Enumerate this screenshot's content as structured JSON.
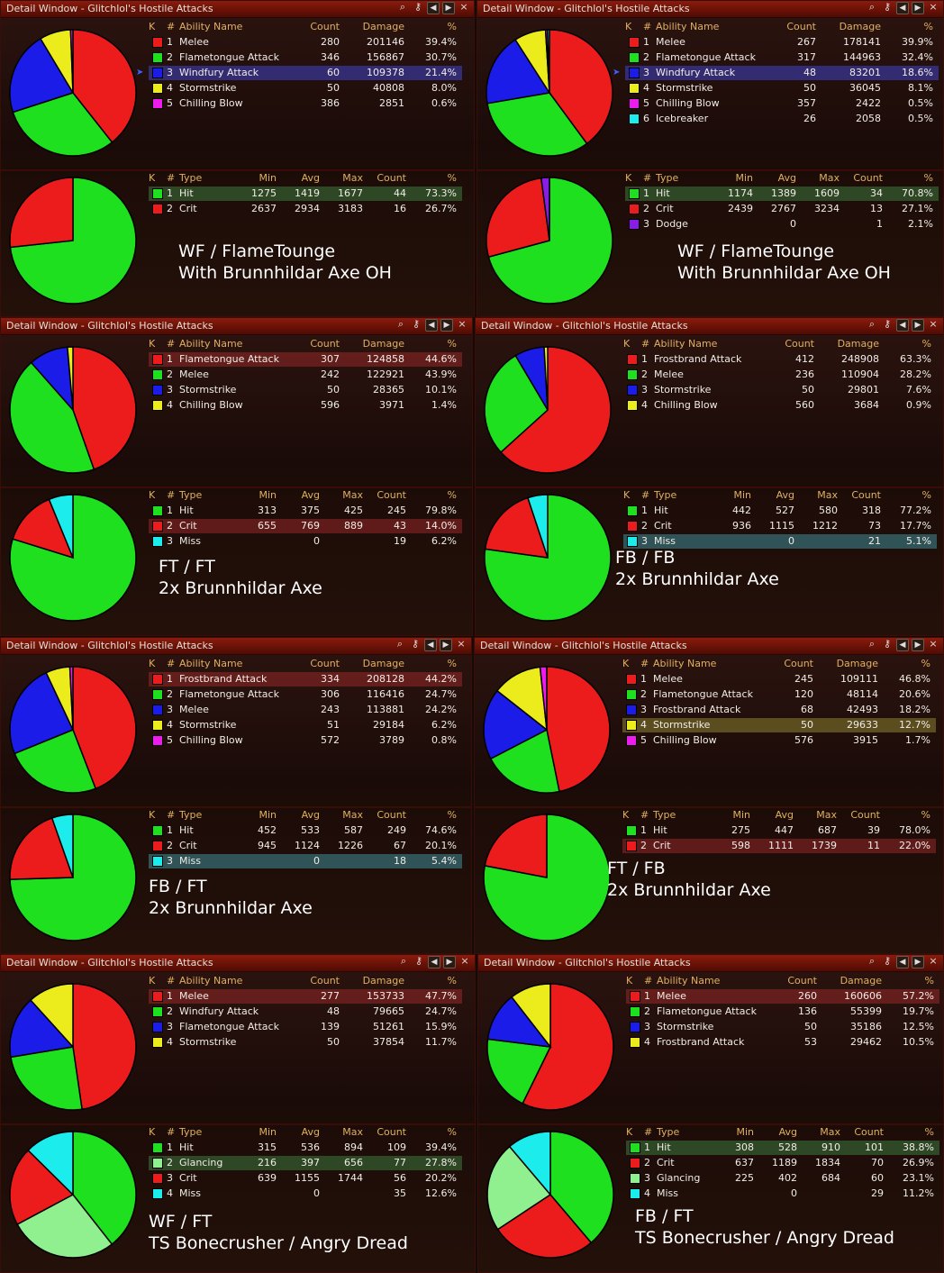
{
  "colors": {
    "red": "#ec1c1c",
    "green": "#1fe01f",
    "blue": "#1c1ce8",
    "yellow": "#ecec1c",
    "magenta": "#ec1cec",
    "cyan": "#1cecec",
    "purple": "#8a1ce8",
    "lightgreen": "#90f090"
  },
  "window_title": "Detail Window - Glitchlol's Hostile Attacks",
  "ability_headers": {
    "k": "K",
    "num": "#",
    "name": "Ability Name",
    "count": "Count",
    "damage": "Damage",
    "pct": "%"
  },
  "type_headers": {
    "k": "K",
    "num": "#",
    "type": "Type",
    "min": "Min",
    "avg": "Avg",
    "max": "Max",
    "count": "Count",
    "pct": "%"
  },
  "panels": [
    {
      "abilities": [
        {
          "num": "1",
          "name": "Melee",
          "count": "280",
          "damage": "201146",
          "pct": "39.4%",
          "color": "red",
          "value": 39.4
        },
        {
          "num": "2",
          "name": "Flametongue Attack",
          "count": "346",
          "damage": "156867",
          "pct": "30.7%",
          "color": "green",
          "value": 30.7
        },
        {
          "num": "3",
          "name": "Windfury Attack",
          "count": "60",
          "damage": "109378",
          "pct": "21.4%",
          "color": "blue",
          "value": 21.4,
          "highlight": "blue",
          "arrow": true
        },
        {
          "num": "4",
          "name": "Stormstrike",
          "count": "50",
          "damage": "40808",
          "pct": "8.0%",
          "color": "yellow",
          "value": 8.0
        },
        {
          "num": "5",
          "name": "Chilling Blow",
          "count": "386",
          "damage": "2851",
          "pct": "0.6%",
          "color": "magenta",
          "value": 0.6
        }
      ],
      "types": [
        {
          "num": "1",
          "type": "Hit",
          "min": "1275",
          "avg": "1419",
          "max": "1677",
          "count": "44",
          "pct": "73.3%",
          "color": "green",
          "value": 73.3,
          "highlight": "green"
        },
        {
          "num": "2",
          "type": "Crit",
          "min": "2637",
          "avg": "2934",
          "max": "3183",
          "count": "16",
          "pct": "26.7%",
          "color": "red",
          "value": 26.7
        }
      ],
      "caption": [
        "WF / FlameTounge",
        "With Brunnhildar Axe OH"
      ]
    },
    {
      "abilities": [
        {
          "num": "1",
          "name": "Melee",
          "count": "267",
          "damage": "178141",
          "pct": "39.9%",
          "color": "red",
          "value": 39.9
        },
        {
          "num": "2",
          "name": "Flametongue Attack",
          "count": "317",
          "damage": "144963",
          "pct": "32.4%",
          "color": "green",
          "value": 32.4
        },
        {
          "num": "3",
          "name": "Windfury Attack",
          "count": "48",
          "damage": "83201",
          "pct": "18.6%",
          "color": "blue",
          "value": 18.6,
          "highlight": "blue",
          "arrow": true
        },
        {
          "num": "4",
          "name": "Stormstrike",
          "count": "50",
          "damage": "36045",
          "pct": "8.1%",
          "color": "yellow",
          "value": 8.1
        },
        {
          "num": "5",
          "name": "Chilling Blow",
          "count": "357",
          "damage": "2422",
          "pct": "0.5%",
          "color": "magenta",
          "value": 0.5
        },
        {
          "num": "6",
          "name": "Icebreaker",
          "count": "26",
          "damage": "2058",
          "pct": "0.5%",
          "color": "cyan",
          "value": 0.5
        }
      ],
      "types": [
        {
          "num": "1",
          "type": "Hit",
          "min": "1174",
          "avg": "1389",
          "max": "1609",
          "count": "34",
          "pct": "70.8%",
          "color": "green",
          "value": 70.8,
          "highlight": "green"
        },
        {
          "num": "2",
          "type": "Crit",
          "min": "2439",
          "avg": "2767",
          "max": "3234",
          "count": "13",
          "pct": "27.1%",
          "color": "red",
          "value": 27.1
        },
        {
          "num": "3",
          "type": "Dodge",
          "min": "",
          "avg": "0",
          "max": "",
          "count": "1",
          "pct": "2.1%",
          "color": "purple",
          "value": 2.1
        }
      ],
      "caption": [
        "WF / FlameTounge",
        "With Brunnhildar Axe OH"
      ]
    },
    {
      "abilities": [
        {
          "num": "1",
          "name": "Flametongue Attack",
          "count": "307",
          "damage": "124858",
          "pct": "44.6%",
          "color": "red",
          "value": 44.6,
          "highlight": "red"
        },
        {
          "num": "2",
          "name": "Melee",
          "count": "242",
          "damage": "122921",
          "pct": "43.9%",
          "color": "green",
          "value": 43.9
        },
        {
          "num": "3",
          "name": "Stormstrike",
          "count": "50",
          "damage": "28365",
          "pct": "10.1%",
          "color": "blue",
          "value": 10.1
        },
        {
          "num": "4",
          "name": "Chilling Blow",
          "count": "596",
          "damage": "3971",
          "pct": "1.4%",
          "color": "yellow",
          "value": 1.4
        }
      ],
      "types": [
        {
          "num": "1",
          "type": "Hit",
          "min": "313",
          "avg": "375",
          "max": "425",
          "count": "245",
          "pct": "79.8%",
          "color": "green",
          "value": 79.8
        },
        {
          "num": "2",
          "type": "Crit",
          "min": "655",
          "avg": "769",
          "max": "889",
          "count": "43",
          "pct": "14.0%",
          "color": "red",
          "value": 14.0,
          "highlight": "red"
        },
        {
          "num": "3",
          "type": "Miss",
          "min": "",
          "avg": "0",
          "max": "",
          "count": "19",
          "pct": "6.2%",
          "color": "cyan",
          "value": 6.2
        }
      ],
      "caption": [
        "FT / FT",
        "2x Brunnhildar Axe"
      ]
    },
    {
      "abilities": [
        {
          "num": "1",
          "name": "Frostbrand Attack",
          "count": "412",
          "damage": "248908",
          "pct": "63.3%",
          "color": "red",
          "value": 63.3
        },
        {
          "num": "2",
          "name": "Melee",
          "count": "236",
          "damage": "110904",
          "pct": "28.2%",
          "color": "green",
          "value": 28.2
        },
        {
          "num": "3",
          "name": "Stormstrike",
          "count": "50",
          "damage": "29801",
          "pct": "7.6%",
          "color": "blue",
          "value": 7.6
        },
        {
          "num": "4",
          "name": "Chilling Blow",
          "count": "560",
          "damage": "3684",
          "pct": "0.9%",
          "color": "yellow",
          "value": 0.9
        }
      ],
      "types": [
        {
          "num": "1",
          "type": "Hit",
          "min": "442",
          "avg": "527",
          "max": "580",
          "count": "318",
          "pct": "77.2%",
          "color": "green",
          "value": 77.2
        },
        {
          "num": "2",
          "type": "Crit",
          "min": "936",
          "avg": "1115",
          "max": "1212",
          "count": "73",
          "pct": "17.7%",
          "color": "red",
          "value": 17.7
        },
        {
          "num": "3",
          "type": "Miss",
          "min": "",
          "avg": "0",
          "max": "",
          "count": "21",
          "pct": "5.1%",
          "color": "cyan",
          "value": 5.1,
          "highlight": "cyan"
        }
      ],
      "caption": [
        "FB / FB",
        "2x Brunnhildar Axe"
      ]
    },
    {
      "abilities": [
        {
          "num": "1",
          "name": "Frostbrand Attack",
          "count": "334",
          "damage": "208128",
          "pct": "44.2%",
          "color": "red",
          "value": 44.2,
          "highlight": "red"
        },
        {
          "num": "2",
          "name": "Flametongue Attack",
          "count": "306",
          "damage": "116416",
          "pct": "24.7%",
          "color": "green",
          "value": 24.7
        },
        {
          "num": "3",
          "name": "Melee",
          "count": "243",
          "damage": "113881",
          "pct": "24.2%",
          "color": "blue",
          "value": 24.2
        },
        {
          "num": "4",
          "name": "Stormstrike",
          "count": "51",
          "damage": "29184",
          "pct": "6.2%",
          "color": "yellow",
          "value": 6.2
        },
        {
          "num": "5",
          "name": "Chilling Blow",
          "count": "572",
          "damage": "3789",
          "pct": "0.8%",
          "color": "magenta",
          "value": 0.8
        }
      ],
      "types": [
        {
          "num": "1",
          "type": "Hit",
          "min": "452",
          "avg": "533",
          "max": "587",
          "count": "249",
          "pct": "74.6%",
          "color": "green",
          "value": 74.6
        },
        {
          "num": "2",
          "type": "Crit",
          "min": "945",
          "avg": "1124",
          "max": "1226",
          "count": "67",
          "pct": "20.1%",
          "color": "red",
          "value": 20.1
        },
        {
          "num": "3",
          "type": "Miss",
          "min": "",
          "avg": "0",
          "max": "",
          "count": "18",
          "pct": "5.4%",
          "color": "cyan",
          "value": 5.4,
          "highlight": "cyan"
        }
      ],
      "caption": [
        "FB / FT",
        "2x Brunnhildar Axe"
      ]
    },
    {
      "abilities": [
        {
          "num": "1",
          "name": "Melee",
          "count": "245",
          "damage": "109111",
          "pct": "46.8%",
          "color": "red",
          "value": 46.8
        },
        {
          "num": "2",
          "name": "Flametongue Attack",
          "count": "120",
          "damage": "48114",
          "pct": "20.6%",
          "color": "green",
          "value": 20.6
        },
        {
          "num": "3",
          "name": "Frostbrand Attack",
          "count": "68",
          "damage": "42493",
          "pct": "18.2%",
          "color": "blue",
          "value": 18.2
        },
        {
          "num": "4",
          "name": "Stormstrike",
          "count": "50",
          "damage": "29633",
          "pct": "12.7%",
          "color": "yellow",
          "value": 12.7,
          "highlight": "yellow"
        },
        {
          "num": "5",
          "name": "Chilling Blow",
          "count": "576",
          "damage": "3915",
          "pct": "1.7%",
          "color": "magenta",
          "value": 1.7
        }
      ],
      "types": [
        {
          "num": "1",
          "type": "Hit",
          "min": "275",
          "avg": "447",
          "max": "687",
          "count": "39",
          "pct": "78.0%",
          "color": "green",
          "value": 78.0
        },
        {
          "num": "2",
          "type": "Crit",
          "min": "598",
          "avg": "1111",
          "max": "1739",
          "count": "11",
          "pct": "22.0%",
          "color": "red",
          "value": 22.0,
          "highlight": "red"
        }
      ],
      "caption": [
        "FT / FB",
        "2x Brunnhildar Axe"
      ]
    },
    {
      "abilities": [
        {
          "num": "1",
          "name": "Melee",
          "count": "277",
          "damage": "153733",
          "pct": "47.7%",
          "color": "red",
          "value": 47.7,
          "highlight": "red"
        },
        {
          "num": "2",
          "name": "Windfury Attack",
          "count": "48",
          "damage": "79665",
          "pct": "24.7%",
          "color": "green",
          "value": 24.7
        },
        {
          "num": "3",
          "name": "Flametongue Attack",
          "count": "139",
          "damage": "51261",
          "pct": "15.9%",
          "color": "blue",
          "value": 15.9
        },
        {
          "num": "4",
          "name": "Stormstrike",
          "count": "50",
          "damage": "37854",
          "pct": "11.7%",
          "color": "yellow",
          "value": 11.7
        }
      ],
      "types": [
        {
          "num": "1",
          "type": "Hit",
          "min": "315",
          "avg": "536",
          "max": "894",
          "count": "109",
          "pct": "39.4%",
          "color": "green",
          "value": 39.4
        },
        {
          "num": "2",
          "type": "Glancing",
          "min": "216",
          "avg": "397",
          "max": "656",
          "count": "77",
          "pct": "27.8%",
          "color": "lightgreen",
          "value": 27.8,
          "highlight": "green"
        },
        {
          "num": "3",
          "type": "Crit",
          "min": "639",
          "avg": "1155",
          "max": "1744",
          "count": "56",
          "pct": "20.2%",
          "color": "red",
          "value": 20.2
        },
        {
          "num": "4",
          "type": "Miss",
          "min": "",
          "avg": "0",
          "max": "",
          "count": "35",
          "pct": "12.6%",
          "color": "cyan",
          "value": 12.6
        }
      ],
      "caption": [
        "WF / FT",
        "TS Bonecrusher / Angry Dread"
      ]
    },
    {
      "abilities": [
        {
          "num": "1",
          "name": "Melee",
          "count": "260",
          "damage": "160606",
          "pct": "57.2%",
          "color": "red",
          "value": 57.2,
          "highlight": "red"
        },
        {
          "num": "2",
          "name": "Flametongue Attack",
          "count": "136",
          "damage": "55399",
          "pct": "19.7%",
          "color": "green",
          "value": 19.7
        },
        {
          "num": "3",
          "name": "Stormstrike",
          "count": "50",
          "damage": "35186",
          "pct": "12.5%",
          "color": "blue",
          "value": 12.5
        },
        {
          "num": "4",
          "name": "Frostbrand Attack",
          "count": "53",
          "damage": "29462",
          "pct": "10.5%",
          "color": "yellow",
          "value": 10.5
        }
      ],
      "types": [
        {
          "num": "1",
          "type": "Hit",
          "min": "308",
          "avg": "528",
          "max": "910",
          "count": "101",
          "pct": "38.8%",
          "color": "green",
          "value": 38.8,
          "highlight": "green"
        },
        {
          "num": "2",
          "type": "Crit",
          "min": "637",
          "avg": "1189",
          "max": "1834",
          "count": "70",
          "pct": "26.9%",
          "color": "red",
          "value": 26.9
        },
        {
          "num": "3",
          "type": "Glancing",
          "min": "225",
          "avg": "402",
          "max": "684",
          "count": "60",
          "pct": "23.1%",
          "color": "lightgreen",
          "value": 23.1
        },
        {
          "num": "4",
          "type": "Miss",
          "min": "",
          "avg": "0",
          "max": "",
          "count": "29",
          "pct": "11.2%",
          "color": "cyan",
          "value": 11.2
        }
      ],
      "caption": [
        "FB / FT",
        "TS Bonecrusher / Angry Dread"
      ]
    }
  ]
}
